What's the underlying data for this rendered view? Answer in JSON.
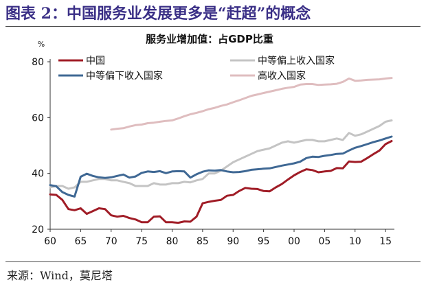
{
  "figure": {
    "label": "图表 2：中国服务业发展更多是“赶超”的概念",
    "source": "来源：Wind，莫尼塔"
  },
  "colors": {
    "china": "#a01c26",
    "upper_middle": "#c4c4c4",
    "lower_middle": "#3f6894",
    "high": "#dfbdbf"
  },
  "chart_data": {
    "type": "line",
    "title": "服务业增加值：占GDP比重",
    "ylabel": "%",
    "xlabel": "",
    "ylim": [
      20,
      80
    ],
    "yticks": [
      20,
      40,
      60,
      80
    ],
    "xlim": [
      1960,
      2016
    ],
    "xticks": [
      1960,
      1965,
      1970,
      1975,
      1980,
      1985,
      1990,
      1995,
      2000,
      2005,
      2010,
      2015
    ],
    "xtick_labels": [
      "60",
      "65",
      "70",
      "75",
      "80",
      "85",
      "90",
      "95",
      "00",
      "05",
      "10",
      "15"
    ],
    "legend": "top-left, two columns",
    "series": [
      {
        "name": "中国",
        "color_key": "china",
        "x": [
          1960,
          1961,
          1962,
          1963,
          1964,
          1965,
          1966,
          1967,
          1968,
          1969,
          1970,
          1971,
          1972,
          1973,
          1974,
          1975,
          1976,
          1977,
          1978,
          1979,
          1980,
          1981,
          1982,
          1983,
          1984,
          1985,
          1986,
          1987,
          1988,
          1989,
          1990,
          1991,
          1992,
          1993,
          1994,
          1995,
          1996,
          1997,
          1998,
          1999,
          2000,
          2001,
          2002,
          2003,
          2004,
          2005,
          2006,
          2007,
          2008,
          2009,
          2010,
          2011,
          2012,
          2013,
          2014,
          2015,
          2016
        ],
        "values": [
          32.5,
          32.3,
          30.5,
          27.2,
          26.8,
          27.5,
          25.5,
          26.5,
          27.5,
          27.2,
          25.0,
          24.5,
          24.8,
          24.0,
          23.5,
          22.5,
          22.5,
          24.5,
          24.6,
          22.5,
          22.5,
          22.3,
          22.8,
          22.7,
          24.5,
          29.3,
          29.8,
          30.2,
          30.5,
          32.0,
          32.3,
          33.7,
          34.8,
          34.5,
          34.4,
          33.7,
          33.6,
          35.0,
          36.2,
          37.8,
          39.3,
          40.5,
          41.5,
          41.2,
          40.4,
          40.7,
          40.9,
          41.9,
          41.8,
          44.3,
          44.1,
          44.2,
          45.5,
          46.9,
          48.2,
          50.5,
          51.6
        ]
      },
      {
        "name": "中等偏上收入国家",
        "color_key": "upper_middle",
        "x": [
          1960,
          1961,
          1962,
          1963,
          1964,
          1965,
          1966,
          1967,
          1968,
          1969,
          1970,
          1971,
          1972,
          1973,
          1974,
          1975,
          1976,
          1977,
          1978,
          1979,
          1980,
          1981,
          1982,
          1983,
          1984,
          1985,
          1986,
          1987,
          1988,
          1989,
          1990,
          1991,
          1992,
          1993,
          1994,
          1995,
          1996,
          1997,
          1998,
          1999,
          2000,
          2001,
          2002,
          2003,
          2004,
          2005,
          2006,
          2007,
          2008,
          2009,
          2010,
          2011,
          2012,
          2013,
          2014,
          2015,
          2016
        ],
        "values": [
          35.0,
          35.5,
          35.5,
          34.5,
          35.0,
          37.0,
          37.0,
          37.5,
          38.0,
          38.0,
          37.5,
          37.5,
          37.0,
          36.5,
          35.5,
          35.5,
          35.5,
          36.5,
          36.0,
          36.0,
          36.5,
          36.5,
          37.0,
          36.8,
          37.5,
          38.0,
          40.0,
          40.0,
          41.0,
          42.5,
          44.0,
          45.0,
          46.0,
          47.0,
          48.0,
          48.5,
          49.0,
          50.0,
          51.0,
          51.5,
          51.0,
          51.5,
          52.0,
          52.0,
          51.5,
          51.5,
          52.0,
          52.5,
          52.0,
          54.5,
          53.5,
          54.0,
          55.0,
          56.0,
          57.0,
          58.5,
          59.0
        ]
      },
      {
        "name": "中等偏下收入国家",
        "color_key": "lower_middle",
        "x": [
          1960,
          1961,
          1962,
          1963,
          1964,
          1965,
          1966,
          1967,
          1968,
          1969,
          1970,
          1971,
          1972,
          1973,
          1974,
          1975,
          1976,
          1977,
          1978,
          1979,
          1980,
          1981,
          1982,
          1983,
          1984,
          1985,
          1986,
          1987,
          1988,
          1989,
          1990,
          1991,
          1992,
          1993,
          1994,
          1995,
          1996,
          1997,
          1998,
          1999,
          2000,
          2001,
          2002,
          2003,
          2004,
          2005,
          2006,
          2007,
          2008,
          2009,
          2010,
          2011,
          2012,
          2013,
          2014,
          2015,
          2016
        ],
        "values": [
          35.8,
          35.4,
          33.3,
          32.3,
          31.7,
          38.8,
          39.9,
          39.1,
          38.6,
          38.4,
          38.6,
          39.1,
          39.6,
          38.5,
          38.9,
          40.2,
          40.7,
          40.5,
          40.8,
          40.1,
          40.7,
          40.8,
          40.7,
          38.5,
          39.7,
          40.6,
          41.1,
          41.0,
          41.2,
          40.7,
          40.4,
          40.5,
          40.8,
          41.3,
          41.5,
          41.7,
          41.8,
          42.3,
          42.8,
          43.2,
          43.6,
          44.2,
          45.5,
          46.0,
          45.9,
          46.3,
          46.6,
          47.0,
          47.1,
          48.2,
          49.2,
          49.8,
          50.5,
          51.2,
          51.8,
          52.5,
          53.2
        ]
      },
      {
        "name": "高收入国家",
        "color_key": "high",
        "x": [
          1970,
          1971,
          1972,
          1973,
          1974,
          1975,
          1976,
          1977,
          1978,
          1979,
          1980,
          1981,
          1982,
          1983,
          1984,
          1985,
          1986,
          1987,
          1988,
          1989,
          1990,
          1991,
          1992,
          1993,
          1994,
          1995,
          1996,
          1997,
          1998,
          1999,
          2000,
          2001,
          2002,
          2003,
          2004,
          2005,
          2006,
          2007,
          2008,
          2009,
          2010,
          2011,
          2012,
          2013,
          2014,
          2015,
          2016
        ],
        "values": [
          55.7,
          56.0,
          56.2,
          56.8,
          57.3,
          57.5,
          58.0,
          58.2,
          58.5,
          58.8,
          59.0,
          59.7,
          60.5,
          61.2,
          61.7,
          62.3,
          63.0,
          63.5,
          64.2,
          64.7,
          65.5,
          66.2,
          67.0,
          67.8,
          68.3,
          68.8,
          69.3,
          69.8,
          70.3,
          70.7,
          71.0,
          71.8,
          72.0,
          72.0,
          71.7,
          71.8,
          71.9,
          72.1,
          72.8,
          74.0,
          73.2,
          73.3,
          73.5,
          73.6,
          73.7,
          74.0,
          74.2
        ]
      }
    ]
  }
}
